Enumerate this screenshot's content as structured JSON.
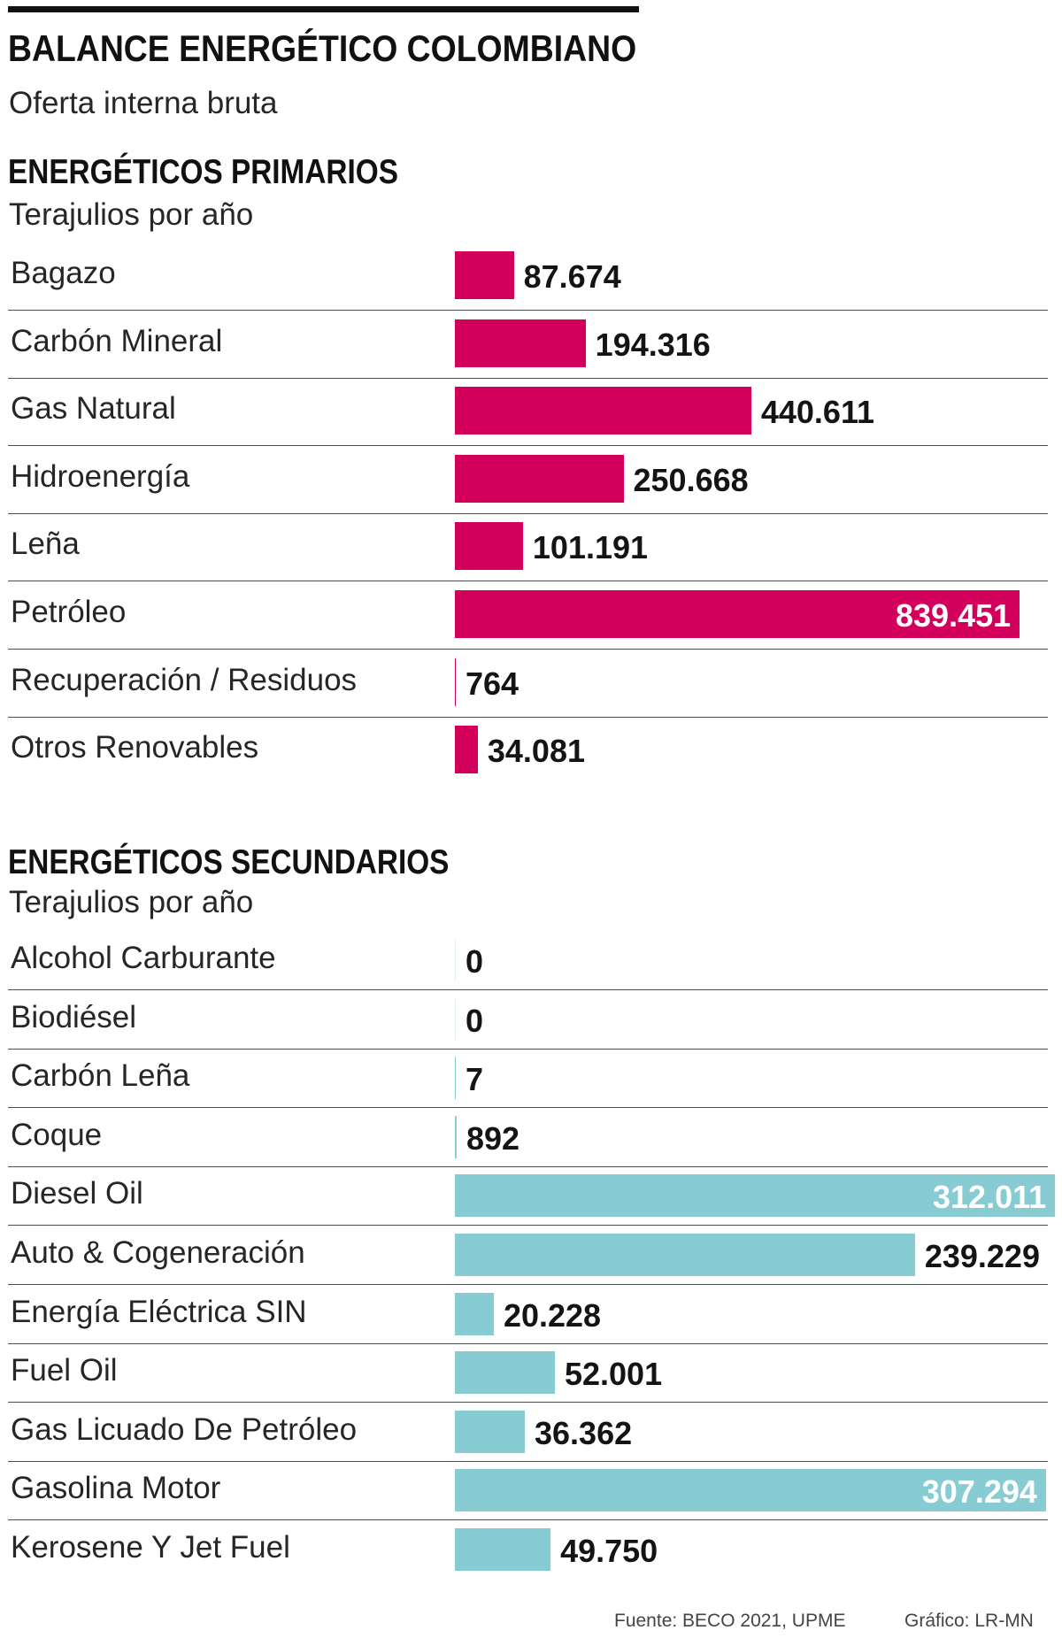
{
  "header": {
    "title": "BALANCE ENERGÉTICO COLOMBIANO",
    "subtitle": "Oferta interna bruta"
  },
  "chart_data": [
    {
      "type": "bar",
      "title": "ENERGÉTICOS PRIMARIOS",
      "unit": "Terajulios por año",
      "categories": [
        "Bagazo",
        "Carbón Mineral",
        "Gas Natural",
        "Hidroenergía",
        "Leña",
        "Petróleo",
        "Recuperación / Residuos",
        "Otros Renovables"
      ],
      "values": [
        87674,
        194316,
        440611,
        250668,
        101191,
        839451,
        764,
        34081
      ],
      "value_labels": [
        "87.674",
        "194.316",
        "440.611",
        "250.668",
        "101.191",
        "839.451",
        "764",
        "34.081"
      ],
      "color": "#d2005b"
    },
    {
      "type": "bar",
      "title": "ENERGÉTICOS SECUNDARIOS",
      "unit": "Terajulios por año",
      "categories": [
        "Alcohol Carburante",
        "Biodiésel",
        "Carbón Leña",
        "Coque",
        "Diesel Oil",
        "Auto & Cogeneración",
        "Energía Eléctrica SIN",
        "Fuel Oil",
        "Gas Licuado De Petróleo",
        "Gasolina Motor",
        "Kerosene Y Jet Fuel"
      ],
      "values": [
        0,
        0,
        7,
        892,
        312011,
        239229,
        20228,
        52001,
        36362,
        307294,
        49750
      ],
      "value_labels": [
        "0",
        "0",
        "7",
        "892",
        "312.011",
        "239.229",
        "20.228",
        "52.001",
        "36.362",
        "307.294",
        "49.750"
      ],
      "color": "#88ccd3"
    }
  ],
  "footer": {
    "source": "Fuente: BECO 2021, UPME",
    "credit": "Gráfico: LR-MN"
  }
}
